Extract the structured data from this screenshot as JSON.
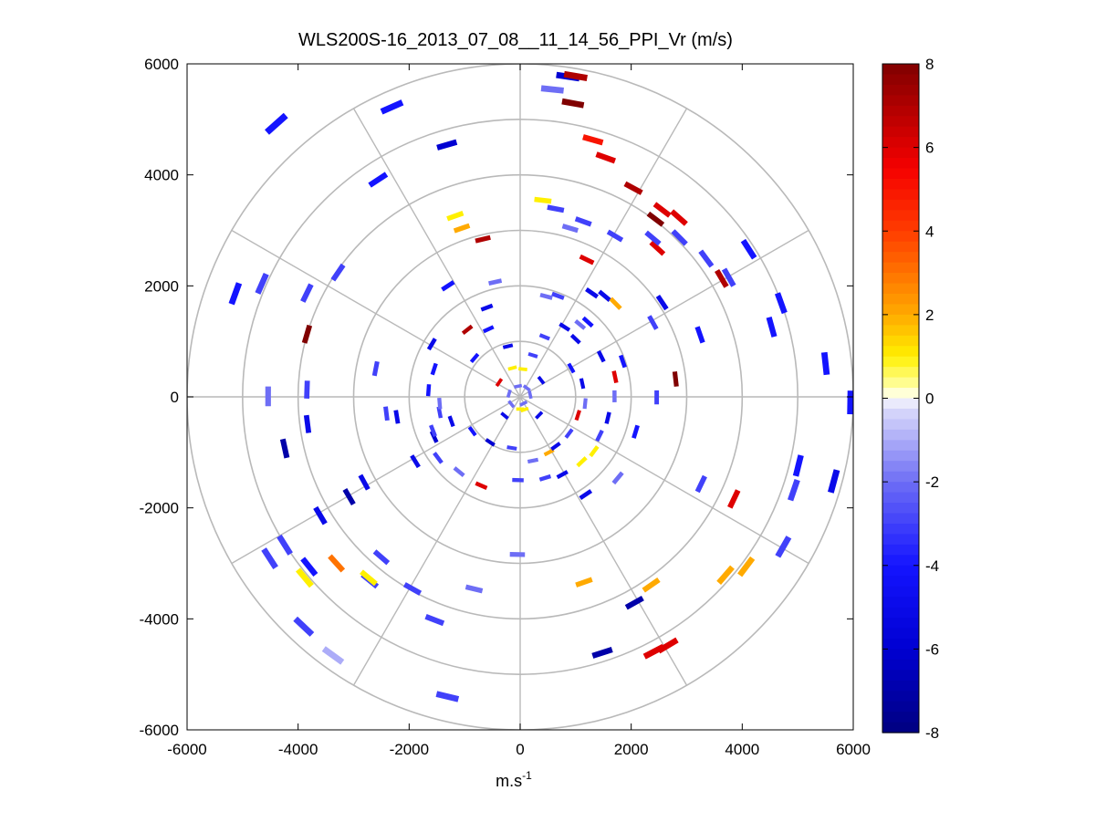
{
  "chart_data": {
    "type": "heatmap",
    "subtype": "polar-ppi",
    "title": "WLS200S-16_2013_07_08__11_14_56_PPI_Vr (m/s)",
    "xlabel": "m.s",
    "xlabel_superscript": "-1",
    "ylabel": "",
    "xlim": [
      -6000,
      6000
    ],
    "ylim": [
      -6000,
      6000
    ],
    "xticks": [
      -6000,
      -4000,
      -2000,
      0,
      2000,
      4000,
      6000
    ],
    "yticks": [
      6000,
      4000,
      2000,
      0,
      -2000,
      -4000,
      -6000
    ],
    "xtick_labels": [
      "-6000",
      "-4000",
      "-2000",
      "0",
      "2000",
      "4000",
      "6000"
    ],
    "ytick_labels": [
      "6000",
      "4000",
      "2000",
      "0",
      "-2000",
      "-4000",
      "-6000"
    ],
    "range_rings": [
      1000,
      2000,
      3000,
      4000,
      5000,
      6000
    ],
    "spoke_angles_deg": [
      0,
      30,
      60,
      90,
      120,
      150,
      180,
      210,
      240,
      270,
      300,
      330
    ],
    "colorbar": {
      "min": -8,
      "max": 8,
      "ticks": [
        8,
        6,
        4,
        2,
        0,
        -2,
        -4,
        -6,
        -8
      ],
      "tick_labels": [
        "8",
        "6",
        "4",
        "2",
        "0",
        "-2",
        "-4",
        "-6",
        "-8"
      ]
    },
    "colors": {
      "ring": "#b9b9b9",
      "spoke": "#b9b9b9",
      "axis": "#000000"
    },
    "gates": [
      [
        860,
        5770,
        -6
      ],
      [
        1000,
        5780,
        7
      ],
      [
        580,
        5540,
        -2
      ],
      [
        950,
        5290,
        8
      ],
      [
        1310,
        4630,
        5
      ],
      [
        1540,
        4310,
        6
      ],
      [
        2040,
        3760,
        7
      ],
      [
        2440,
        3200,
        8
      ],
      [
        2470,
        2680,
        6
      ],
      [
        2560,
        3370,
        6
      ],
      [
        2860,
        3230,
        6
      ],
      [
        3630,
        2130,
        7
      ],
      [
        4700,
        1690,
        -4
      ],
      [
        5500,
        600,
        -4
      ],
      [
        5950,
        -100,
        -4
      ],
      [
        5650,
        -1520,
        -5
      ],
      [
        5010,
        -1240,
        -4
      ],
      [
        4930,
        -1680,
        -3
      ],
      [
        4740,
        -2700,
        -3
      ],
      [
        4070,
        -3060,
        2
      ],
      [
        3700,
        -3210,
        2
      ],
      [
        3850,
        -1840,
        6
      ],
      [
        3260,
        -1570,
        -3
      ],
      [
        2360,
        -3390,
        2
      ],
      [
        2060,
        -3710,
        -7
      ],
      [
        2410,
        -4590,
        6
      ],
      [
        2660,
        -4480,
        6
      ],
      [
        1480,
        -4610,
        -7
      ],
      [
        1150,
        -3340,
        2
      ],
      [
        -50,
        -2840,
        -2
      ],
      [
        -830,
        -3460,
        -2
      ],
      [
        -1310,
        -5400,
        -3
      ],
      [
        -1540,
        -4020,
        -3
      ],
      [
        -1940,
        -3460,
        -3
      ],
      [
        -2500,
        -2890,
        -3
      ],
      [
        -3310,
        -3000,
        3
      ],
      [
        -3800,
        -3060,
        -4
      ],
      [
        -3880,
        -3260,
        1
      ],
      [
        -4510,
        -2910,
        -3
      ],
      [
        -4240,
        -2670,
        -3
      ],
      [
        -3600,
        -2140,
        -5
      ],
      [
        -3900,
        -4140,
        -3
      ],
      [
        -3370,
        -4660,
        -1
      ],
      [
        -2710,
        -3310,
        -3
      ],
      [
        -2730,
        -3260,
        1
      ],
      [
        -3080,
        -1800,
        -7
      ],
      [
        -4240,
        -930,
        -7
      ],
      [
        -4540,
        10,
        -2
      ],
      [
        -3830,
        -490,
        -5
      ],
      [
        -3840,
        130,
        -3
      ],
      [
        -2810,
        -1540,
        -5
      ],
      [
        -1890,
        -1160,
        -5
      ],
      [
        -1550,
        -720,
        -6
      ],
      [
        -2410,
        -300,
        -3
      ],
      [
        -2220,
        -360,
        -5
      ],
      [
        -2600,
        510,
        -3
      ],
      [
        -3840,
        1130,
        8
      ],
      [
        -3840,
        1870,
        -3
      ],
      [
        -4650,
        2040,
        -3
      ],
      [
        -5130,
        1860,
        -4
      ],
      [
        -4390,
        4920,
        -4
      ],
      [
        -2310,
        5220,
        -4
      ],
      [
        -1320,
        4540,
        -6
      ],
      [
        -2560,
        3910,
        -4
      ],
      [
        -3280,
        2240,
        -3
      ],
      [
        -1170,
        3260,
        1
      ],
      [
        -1050,
        3040,
        2
      ],
      [
        -670,
        2840,
        7
      ],
      [
        -450,
        2070,
        -2
      ],
      [
        -1300,
        2000,
        -4
      ],
      [
        -570,
        1220,
        -4
      ],
      [
        -220,
        910,
        -5
      ],
      [
        410,
        3540,
        1
      ],
      [
        640,
        3390,
        -3
      ],
      [
        900,
        3040,
        -2
      ],
      [
        1140,
        3160,
        -3
      ],
      [
        1710,
        2900,
        -3
      ],
      [
        2390,
        2860,
        -3
      ],
      [
        2870,
        2870,
        -3
      ],
      [
        3350,
        2490,
        -3
      ],
      [
        3760,
        2150,
        -3
      ],
      [
        4120,
        2660,
        -4
      ],
      [
        4530,
        1260,
        -4
      ],
      [
        3240,
        1120,
        -4
      ],
      [
        2560,
        1700,
        -5
      ],
      [
        2390,
        1340,
        -3
      ],
      [
        1200,
        2470,
        6
      ],
      [
        1290,
        1870,
        -5
      ],
      [
        1520,
        1820,
        -5
      ],
      [
        1720,
        1680,
        2
      ],
      [
        2800,
        320,
        8
      ],
      [
        1850,
        640,
        -4
      ],
      [
        2460,
        -10,
        -3
      ],
      [
        2080,
        -630,
        -4
      ],
      [
        1760,
        -1460,
        -2
      ],
      [
        1180,
        -1760,
        -5
      ],
      [
        680,
        1820,
        -3
      ],
      [
        470,
        1810,
        -2
      ],
      [
        1220,
        1350,
        -4
      ],
      [
        1000,
        1040,
        -5
      ],
      [
        440,
        1080,
        -3
      ],
      [
        230,
        750,
        -3
      ],
      [
        50,
        500,
        1
      ],
      [
        -140,
        520,
        1
      ],
      [
        -820,
        700,
        -4
      ],
      [
        -1450,
        -280,
        -3
      ],
      [
        -1240,
        -440,
        -5
      ],
      [
        -860,
        -620,
        -4
      ],
      [
        -540,
        -820,
        -6
      ],
      [
        -150,
        -920,
        -3
      ],
      [
        230,
        -1150,
        -2
      ],
      [
        520,
        -1000,
        2
      ],
      [
        640,
        -890,
        -5
      ],
      [
        880,
        -660,
        -3
      ],
      [
        1040,
        -330,
        6
      ],
      [
        1170,
        -120,
        -2
      ],
      [
        1120,
        240,
        -5
      ],
      [
        920,
        520,
        -4
      ],
      [
        1080,
        1300,
        -2
      ],
      [
        800,
        1260,
        -5
      ],
      [
        -600,
        1610,
        -5
      ],
      [
        -950,
        1210,
        7
      ],
      [
        -1590,
        950,
        -5
      ],
      [
        -1550,
        500,
        -4
      ],
      [
        -1650,
        120,
        -4
      ],
      [
        -1450,
        -120,
        -2
      ],
      [
        -1570,
        -610,
        -3
      ],
      [
        -1480,
        -1100,
        -3
      ],
      [
        -1100,
        -1350,
        -2
      ],
      [
        -700,
        -1600,
        6
      ],
      [
        -40,
        -1500,
        -3
      ],
      [
        450,
        -1460,
        -3
      ],
      [
        760,
        -1400,
        -5
      ],
      [
        1110,
        -1170,
        1
      ],
      [
        1330,
        -980,
        1
      ],
      [
        1430,
        -700,
        -3
      ],
      [
        1580,
        -380,
        -5
      ],
      [
        1700,
        10,
        -2
      ],
      [
        1710,
        360,
        6
      ],
      [
        1460,
        730,
        -5
      ],
      [
        -160,
        -130,
        -2
      ],
      [
        60,
        -120,
        -2
      ],
      [
        180,
        40,
        -2
      ],
      [
        -40,
        190,
        -2
      ],
      [
        -200,
        60,
        -2
      ],
      [
        120,
        160,
        -2
      ],
      [
        0,
        -220,
        1
      ],
      [
        80,
        -230,
        1
      ],
      [
        -280,
        -340,
        -5
      ],
      [
        340,
        -330,
        -5
      ],
      [
        -380,
        260,
        6
      ],
      [
        380,
        300,
        -5
      ]
    ]
  }
}
